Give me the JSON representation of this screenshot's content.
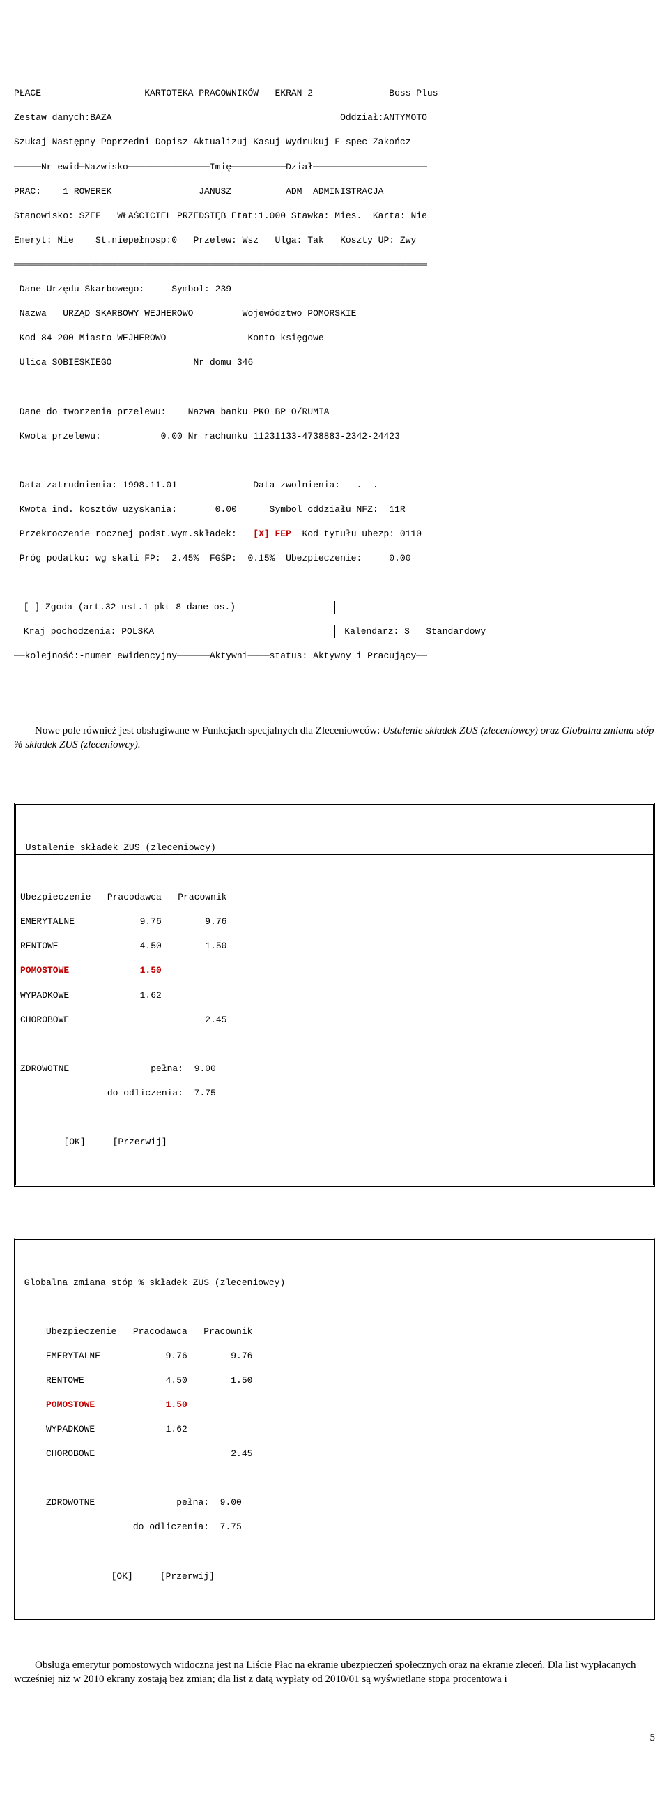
{
  "screen2": {
    "hdr": "PŁACE                   KARTOTEKA PRACOWNIKÓW - EKRAN 2              Boss Plus",
    "l2": "Zestaw danych:BAZA                                          Oddział:ANTYMOTO",
    "l3": "Szukaj Następny Poprzedni Dopisz Aktualizuj Kasuj Wydrukuj F-spec Zakończ",
    "l4": "─────Nr ewid─Nazwisko───────────────Imię──────────Dział─────────────────────",
    "l5": "PRAC:    1 ROWEREK                JANUSZ          ADM  ADMINISTRACJA",
    "l6": "Stanowisko: SZEF   WŁAŚCICIEL PRZEDSIĘB Etat:1.000 Stawka: Mies.  Karta: Nie",
    "l7": "Emeryt: Nie    St.niepełnosp:0   Przelew: Wsz   Ulga: Tak   Koszty UP: Zwy",
    "l8": "════════════════════════════════════════════════════════════════════════════",
    "b1": " Dane Urzędu Skarbowego:     Symbol: 239",
    "b2": " Nazwa   URZĄD SKARBOWY WEJHEROWO         Województwo POMORSKIE",
    "b3": " Kod 84-200 Miasto WEJHEROWO               Konto księgowe",
    "b4": " Ulica SOBIESKIEGO               Nr domu 346",
    "b5": " Dane do tworzenia przelewu:    Nazwa banku PKO BP O/RUMIA",
    "b6": " Kwota przelewu:           0.00 Nr rachunku 11231133-4738883-2342-24423",
    "b7": " Data zatrudnienia: 1998.11.01              Data zwolnienia:   .  .",
    "b8": " Kwota ind. kosztów uzyskania:       0.00      Symbol oddziału NFZ:  11R",
    "b9a": " Przekroczenie rocznej podst.wym.składek:   ",
    "b9b": "[X] FEP",
    "b9c": "  Kod tytułu ubezp: 0110",
    "b10": " Próg podatku: wg skali FP:  2.45%  FGŚP:  0.15%  Ubezpieczenie:     0.00",
    "b11a": " [ ] Zgoda (art.32 ust.1 pkt 8 dane os.)",
    "b11b": "",
    "b12a": " Kraj pochodzenia: POLSKA               ",
    "b12b": " Kalendarz: S   Standardowy",
    "ft": "──kolejność:-numer ewidencyjny──────Aktywni────status: Aktywny i Pracujący──"
  },
  "para1a": "Nowe pole również jest obsługiwane w Funkcjach specjalnych dla Zleceniowców: ",
  "para1b": "Ustalenie składek ZUS (zleceniowcy) oraz Globalna zmiana stóp % składek ZUS (zleceniowcy).",
  "box1": {
    "title": " Ustalenie składek ZUS (zleceniowcy)",
    "h": "Ubezpieczenie   Pracodawca   Pracownik",
    "r1": "EMERYTALNE            9.76        9.76",
    "r2": "RENTOWE               4.50        1.50",
    "r3a": "POMOSTOWE             1.50",
    "r4": "WYPADKOWE             1.62",
    "r5": "CHOROBOWE                         2.45",
    "r7": "ZDROWOTNE               pełna:  9.00",
    "r8": "                do odliczenia:  7.75",
    "btn": "        [OK]     [Przerwij]"
  },
  "box2": {
    "title": " Globalna zmiana stóp % składek ZUS (zleceniowcy)",
    "h": "     Ubezpieczenie   Pracodawca   Pracownik",
    "r1": "     EMERYTALNE            9.76        9.76",
    "r2": "     RENTOWE               4.50        1.50",
    "r3a": "     POMOSTOWE             1.50",
    "r4": "     WYPADKOWE             1.62",
    "r5": "     CHOROBOWE                         2.45",
    "r7": "     ZDROWOTNE               pełna:  9.00",
    "r8": "                     do odliczenia:  7.75",
    "btn": "                 [OK]     [Przerwij]"
  },
  "para2": "Obsługa emerytur pomostowych widoczna jest na Liście Płac na ekranie ubezpieczeń społecznych oraz na ekranie zleceń. Dla list wypłacanych wcześniej niż w 2010 ekrany zostają bez zmian; dla list z datą wypłaty od 2010/01 są wyświetlane stopa procentowa i",
  "pagenum": "5"
}
